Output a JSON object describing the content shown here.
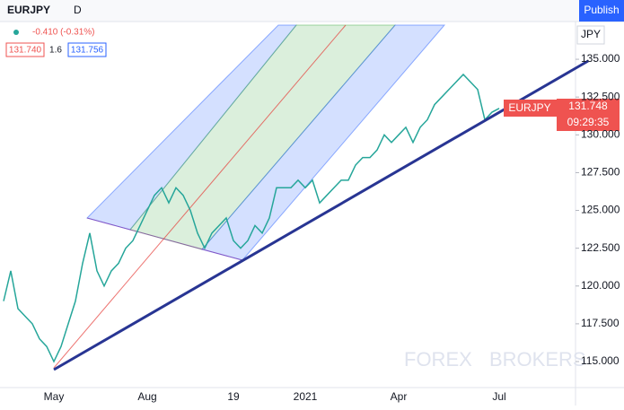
{
  "toolbar": {
    "symbol": "EURJPY",
    "interval": "D",
    "publish": "Publish"
  },
  "legend": {
    "change": "-0.410 (-0.31%)",
    "bid": "131.740",
    "spread": "1.6",
    "ask": "131.756"
  },
  "price_label": {
    "symbol": "EURJPY",
    "price": "131.748",
    "countdown": "09:29:35"
  },
  "currency": "JPY",
  "watermark": {
    "left": "FOREX",
    "right": "BROKERS"
  },
  "chart_data": {
    "type": "line",
    "color": "#26a69a",
    "categories": [
      null,
      null,
      null,
      null,
      null,
      null,
      null,
      "May",
      null,
      null,
      null,
      null,
      null,
      null,
      null,
      null,
      null,
      null,
      null,
      null,
      "Aug",
      null,
      null,
      null,
      null,
      null,
      null,
      null,
      null,
      null,
      null,
      null,
      "19",
      null,
      null,
      null,
      null,
      null,
      null,
      null,
      null,
      null,
      "2021",
      null,
      null,
      null,
      null,
      null,
      null,
      null,
      null,
      null,
      null,
      null,
      null,
      "Apr",
      null,
      null,
      null,
      null,
      null,
      null,
      null,
      null,
      null,
      null,
      null,
      null,
      null,
      "Jul"
    ],
    "values": [
      119,
      121,
      118.5,
      118,
      117.5,
      116.5,
      116,
      115,
      116,
      117.5,
      119,
      121.5,
      123.5,
      121,
      120,
      121,
      121.5,
      122.5,
      123,
      124,
      125,
      126,
      126.5,
      125.5,
      126.5,
      126,
      125,
      123.5,
      122.5,
      123.5,
      124,
      124.5,
      123,
      122.5,
      123,
      124,
      123.5,
      124.5,
      126.5,
      126.5,
      126.5,
      127,
      126.5,
      127,
      125.5,
      126,
      126.5,
      127,
      127,
      128,
      128.5,
      128.5,
      129,
      130,
      129.5,
      130,
      130.5,
      129.5,
      130.5,
      131,
      132,
      132.5,
      133,
      133.5,
      134,
      133.5,
      133,
      131,
      131.5,
      131.75
    ],
    "ylim": [
      113.28,
      137.26
    ],
    "yticks": [
      {
        "value": 115,
        "label": "115.000"
      },
      {
        "value": 117.5,
        "label": "117.500"
      },
      {
        "value": 120,
        "label": "120.000"
      },
      {
        "value": 122.5,
        "label": "122.500"
      },
      {
        "value": 125,
        "label": "125.000"
      },
      {
        "value": 127.5,
        "label": "127.500"
      },
      {
        "value": 130,
        "label": "130.000"
      },
      {
        "value": 132.5,
        "label": "132.500"
      },
      {
        "value": 135,
        "label": "135.000"
      }
    ]
  }
}
